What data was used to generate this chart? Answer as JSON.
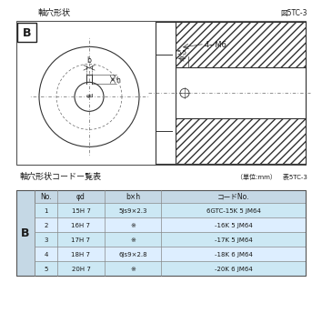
{
  "title_drawing": "軸穴形状",
  "fig_label": "図5TC-3",
  "table_title": "軸穴形状コードー覧表",
  "table_unit": "（単位:mm）　表5TC-3",
  "dim_55": "5.5",
  "dim_4m6": "4−M6",
  "label_b": "b",
  "label_phi_d": "φd",
  "label_h": "h",
  "label_B": "B",
  "headers": [
    "No.",
    "φd",
    "b×h",
    "コードNo."
  ],
  "rows": [
    [
      "1",
      "15H 7",
      "5Js9×2.3",
      "6GTC-15K 5 JM64"
    ],
    [
      "2",
      "16H 7",
      "※",
      "-16K 5 JM64"
    ],
    [
      "3",
      "17H 7",
      "※",
      "-17K 5 JM64"
    ],
    [
      "4",
      "18H 7",
      "6Js9×2.8",
      "-18K 6 JM64"
    ],
    [
      "5",
      "20H 7",
      "※",
      "-20K 6 JM64"
    ]
  ],
  "text_color": "#1a1a1a",
  "border_color": "#555555",
  "hatch_color": "#888888",
  "cell_blue": "#ddeeff",
  "cell_blue2": "#cce8f4",
  "header_bg": "#c5d8e5"
}
